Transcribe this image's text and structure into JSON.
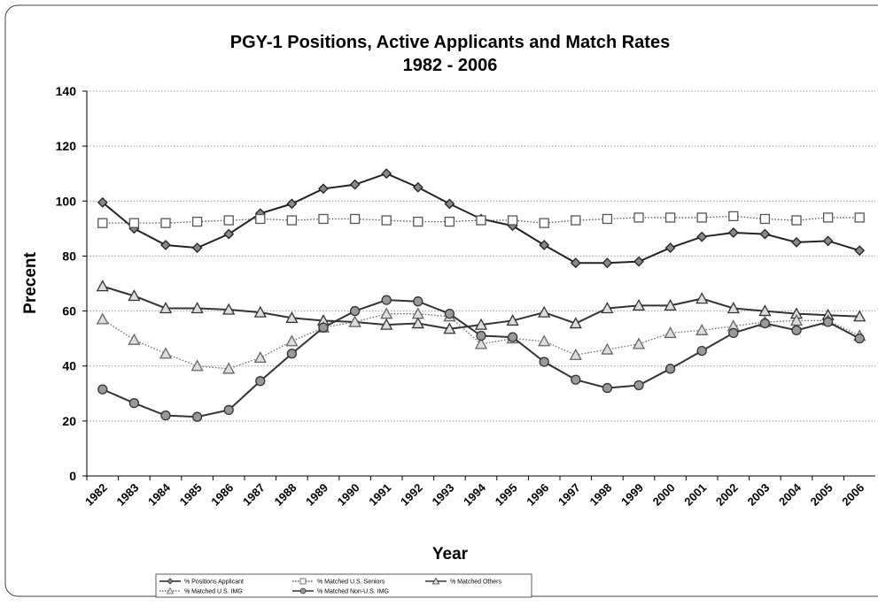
{
  "chart_data": {
    "type": "line",
    "title": "PGY-1 Positions, Active Applicants and Match Rates",
    "subtitle": "1982 - 2006",
    "x_label": "Year",
    "y_label": "Precent",
    "categories": [
      "1982",
      "1983",
      "1984",
      "1985",
      "1986",
      "1987",
      "1988",
      "1989",
      "1990",
      "1991",
      "1992",
      "1993",
      "1994",
      "1995",
      "1996",
      "1997",
      "1998",
      "1999",
      "2000",
      "2001",
      "2002",
      "2003",
      "2004",
      "2005",
      "2006"
    ],
    "ylim": [
      0,
      140
    ],
    "yticks": [
      0,
      20,
      40,
      60,
      80,
      100,
      120,
      140
    ],
    "grid": true,
    "legend": "bottom-left",
    "series": [
      {
        "name": "% Positions Applicant",
        "color": "#222222",
        "marker": "diamond",
        "dash": "solid",
        "values": [
          99.5,
          90,
          84,
          83,
          88,
          95.5,
          99,
          104.5,
          106,
          110,
          105,
          99,
          93.5,
          91,
          84,
          77.5,
          77.5,
          78,
          83,
          87,
          88.5,
          88,
          85,
          85.5,
          82
        ]
      },
      {
        "name": "% Matched U.S. Seniors",
        "color": "#555555",
        "marker": "square",
        "dash": "dotted",
        "values": [
          92,
          92,
          92,
          92.5,
          93,
          93.5,
          93,
          93.5,
          93.5,
          93,
          92.5,
          92.5,
          93,
          93,
          92,
          93,
          93.5,
          94,
          94,
          94,
          94.5,
          93.5,
          93,
          94,
          94
        ]
      },
      {
        "name": "% Matched Others",
        "color": "#333333",
        "marker": "triangle",
        "dash": "solid",
        "values": [
          69,
          65.5,
          61,
          61,
          60.5,
          59.5,
          57.5,
          56.5,
          56,
          55,
          55.5,
          53.5,
          55,
          56.5,
          59.5,
          55.5,
          61,
          62,
          62,
          64.5,
          61,
          60,
          59,
          58.5,
          58
        ]
      },
      {
        "name": "% Matched U.S. IMG",
        "color": "#666666",
        "marker": "triangle",
        "dash": "dotted",
        "values": [
          57,
          49.5,
          44.5,
          40,
          39,
          43,
          49,
          54,
          56,
          59,
          59,
          58,
          48,
          50,
          49,
          44,
          46,
          48,
          52,
          53,
          54.5,
          56,
          56.5,
          56.5,
          51
        ]
      },
      {
        "name": "% Matched Non-U.S. IMG",
        "color": "#333333",
        "marker": "circle",
        "dash": "solid",
        "values": [
          31.5,
          26.5,
          22,
          21.5,
          24,
          34.5,
          44.5,
          54,
          60,
          64,
          63.5,
          59,
          51,
          50.5,
          41.5,
          35,
          32,
          33,
          39,
          45.5,
          52,
          55.5,
          53,
          56,
          50
        ]
      }
    ]
  }
}
